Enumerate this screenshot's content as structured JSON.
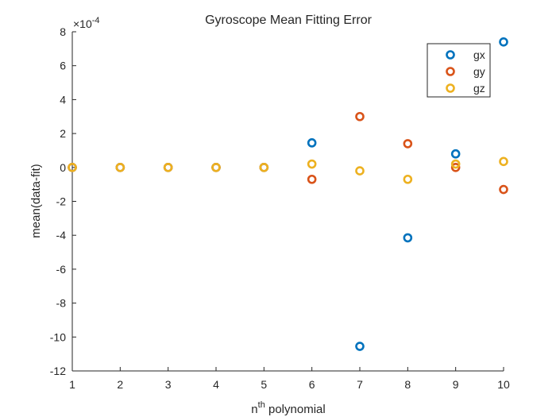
{
  "chart_data": {
    "type": "scatter",
    "title": "Gyroscope Mean Fitting Error",
    "xlabel_base": "n",
    "xlabel_sup": "th",
    "xlabel_rest": " polynomial",
    "ylabel": "mean(data-fit)",
    "y_exponent_prefix": "×10",
    "y_exponent_power": "-4",
    "xlim": [
      1,
      10
    ],
    "ylim": [
      -12,
      8
    ],
    "x_ticks": [
      1,
      2,
      3,
      4,
      5,
      6,
      7,
      8,
      9,
      10
    ],
    "y_ticks": [
      -12,
      -10,
      -8,
      -6,
      -4,
      -2,
      0,
      2,
      4,
      6,
      8
    ],
    "grid": false,
    "legend_position": "top-right",
    "x": [
      1,
      2,
      3,
      4,
      5,
      6,
      7,
      8,
      9,
      10
    ],
    "series": [
      {
        "name": "gx",
        "color": "#0072BD",
        "values": [
          0,
          0,
          0,
          0,
          0,
          1.45,
          -10.55,
          -4.15,
          0.8,
          7.4
        ]
      },
      {
        "name": "gy",
        "color": "#D95319",
        "values": [
          0,
          0,
          0,
          0,
          0,
          -0.7,
          3.0,
          1.4,
          0.0,
          -1.3
        ]
      },
      {
        "name": "gz",
        "color": "#EDB120",
        "values": [
          0,
          0,
          0,
          0,
          0,
          0.2,
          -0.2,
          -0.7,
          0.2,
          0.35
        ]
      }
    ]
  }
}
